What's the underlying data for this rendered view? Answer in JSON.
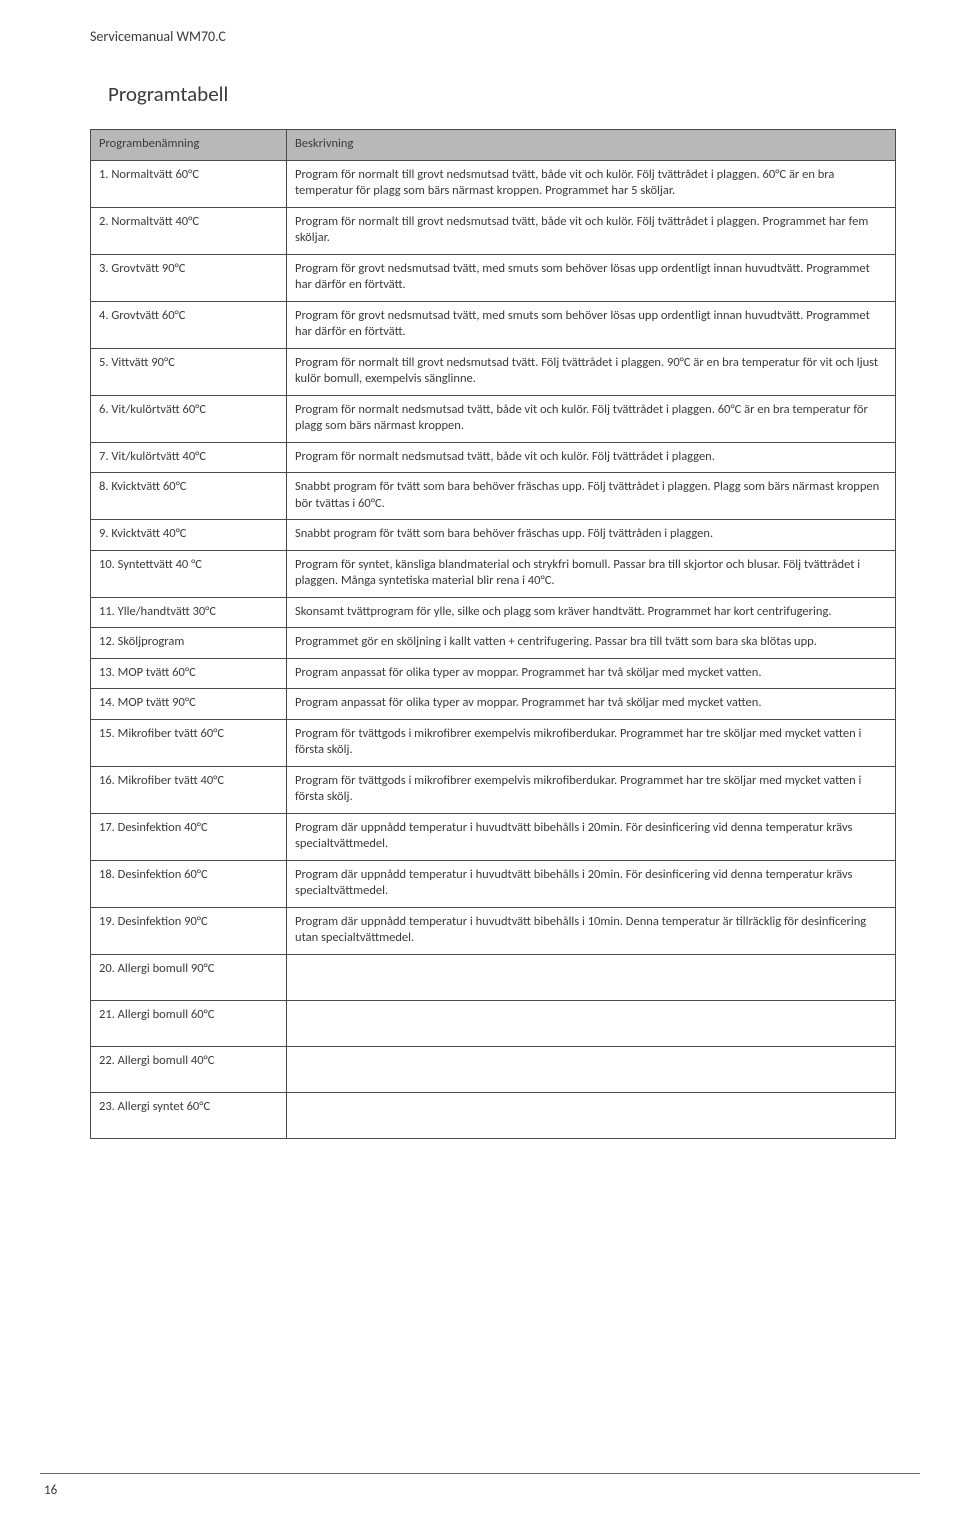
{
  "chapter": "Servicemanual WM70.C",
  "section": "Programtabell",
  "page_number": "16",
  "table": {
    "headers": [
      "Programbenämning",
      "Beskrivning"
    ],
    "rows": [
      {
        "name": "1. Normaltvätt 60°C",
        "desc": "Program för normalt till grovt nedsmutsad tvätt, både vit och kulör. Följ tvättrådet i plaggen. 60°C är en bra temperatur för plagg som bärs närmast kroppen. Programmet har 5 sköljar."
      },
      {
        "name": "2. Normaltvätt 40°C",
        "desc": "Program för normalt till grovt nedsmutsad tvätt, både vit och kulör. Följ tvättrådet i plaggen. Programmet har  fem sköljar."
      },
      {
        "name": "3. Grovtvätt 90°C",
        "desc": "Program för grovt nedsmutsad tvätt, med smuts som behöver lösas upp ordentligt innan huvudtvätt. Programmet har därför en förtvätt."
      },
      {
        "name": "4. Grovtvätt 60°C",
        "desc": "Program för grovt nedsmutsad tvätt, med smuts som behöver lösas upp ordentligt innan huvudtvätt. Programmet har därför en förtvätt."
      },
      {
        "name": "5. Vittvätt 90°C",
        "desc": "Program för normalt till grovt nedsmutsad tvätt. Följ tvättrådet i plaggen. 90°C är en bra temperatur för vit och ljust kulör bomull, exempelvis sänglinne."
      },
      {
        "name": "6. Vit/kulörtvätt 60°C",
        "desc": "Program för normalt nedsmutsad tvätt, både vit och kulör. Följ tvättrådet i plaggen. 60°C är en bra temperatur för plagg som bärs närmast kroppen."
      },
      {
        "name": "7. Vit/kulörtvätt 40°C",
        "desc": "Program för normalt nedsmutsad tvätt, både vit och kulör. Följ tvättrådet i plaggen."
      },
      {
        "name": "8. Kvicktvätt 60°C",
        "desc": "Snabbt program för tvätt som bara behöver fräschas upp. Följ tvättrådet i plaggen. Plagg som bärs närmast kroppen bör tvättas i 60°C."
      },
      {
        "name": "9. Kvicktvätt 40°C",
        "desc": "Snabbt program för tvätt som bara behöver fräschas upp. Följ tvättråden i plaggen."
      },
      {
        "name": "10. Syntettvätt 40 °C",
        "desc": "Program för syntet, känsliga blandmaterial och strykfri bomull. Passar bra till skjortor och blusar. Följ tvättrådet i plaggen. Många syntetiska material blir rena i 40°C."
      },
      {
        "name": "11. Ylle/handtvätt 30°C",
        "desc": "Skonsamt tvättprogram för ylle, silke och plagg som kräver handtvätt. Programmet har kort centrifugering."
      },
      {
        "name": "12. Sköljprogram",
        "desc": "Programmet gör en sköljning i kallt vatten + centrifugering. Passar bra till tvätt som bara ska blötas upp."
      },
      {
        "name": "13. MOP tvätt 60°C",
        "desc": "Program anpassat för olika typer av moppar. Programmet har två sköljar med mycket vatten."
      },
      {
        "name": "14. MOP tvätt 90°C",
        "desc": "Program anpassat för olika typer av moppar. Programmet har två sköljar med mycket vatten."
      },
      {
        "name": "15. Mikrofiber tvätt 60°C",
        "desc": "Program för tvättgods i mikrofibrer exempelvis mikrofiberdukar. Programmet har tre sköljar med mycket vatten i första skölj."
      },
      {
        "name": "16. Mikrofiber tvätt 40°C",
        "desc": "Program för tvättgods i mikrofibrer exempelvis mikrofiberdukar. Programmet har tre sköljar med mycket vatten i första skölj."
      },
      {
        "name": "17. Desinfektion 40°C",
        "desc": "Program där uppnådd temperatur i huvudtvätt bibehålls i 20min. För desinficering vid denna temperatur krävs specialtvättmedel."
      },
      {
        "name": "18. Desinfektion 60°C",
        "desc": "Program där uppnådd temperatur i huvudtvätt bibehålls i 20min. För desinficering vid denna temperatur krävs specialtvättmedel."
      },
      {
        "name": "19. Desinfektion 90°C",
        "desc": "Program där uppnådd temperatur i huvudtvätt bibehålls i 10min. Denna temperatur är tillräcklig för desinficering utan specialtvättmedel."
      },
      {
        "name": "20. Allergi bomull 90°C",
        "desc": ""
      },
      {
        "name": "21. Allergi bomull 60°C",
        "desc": ""
      },
      {
        "name": "22. Allergi bomull 40°C",
        "desc": ""
      },
      {
        "name": "23. Allergi syntet 60°C",
        "desc": ""
      }
    ]
  }
}
